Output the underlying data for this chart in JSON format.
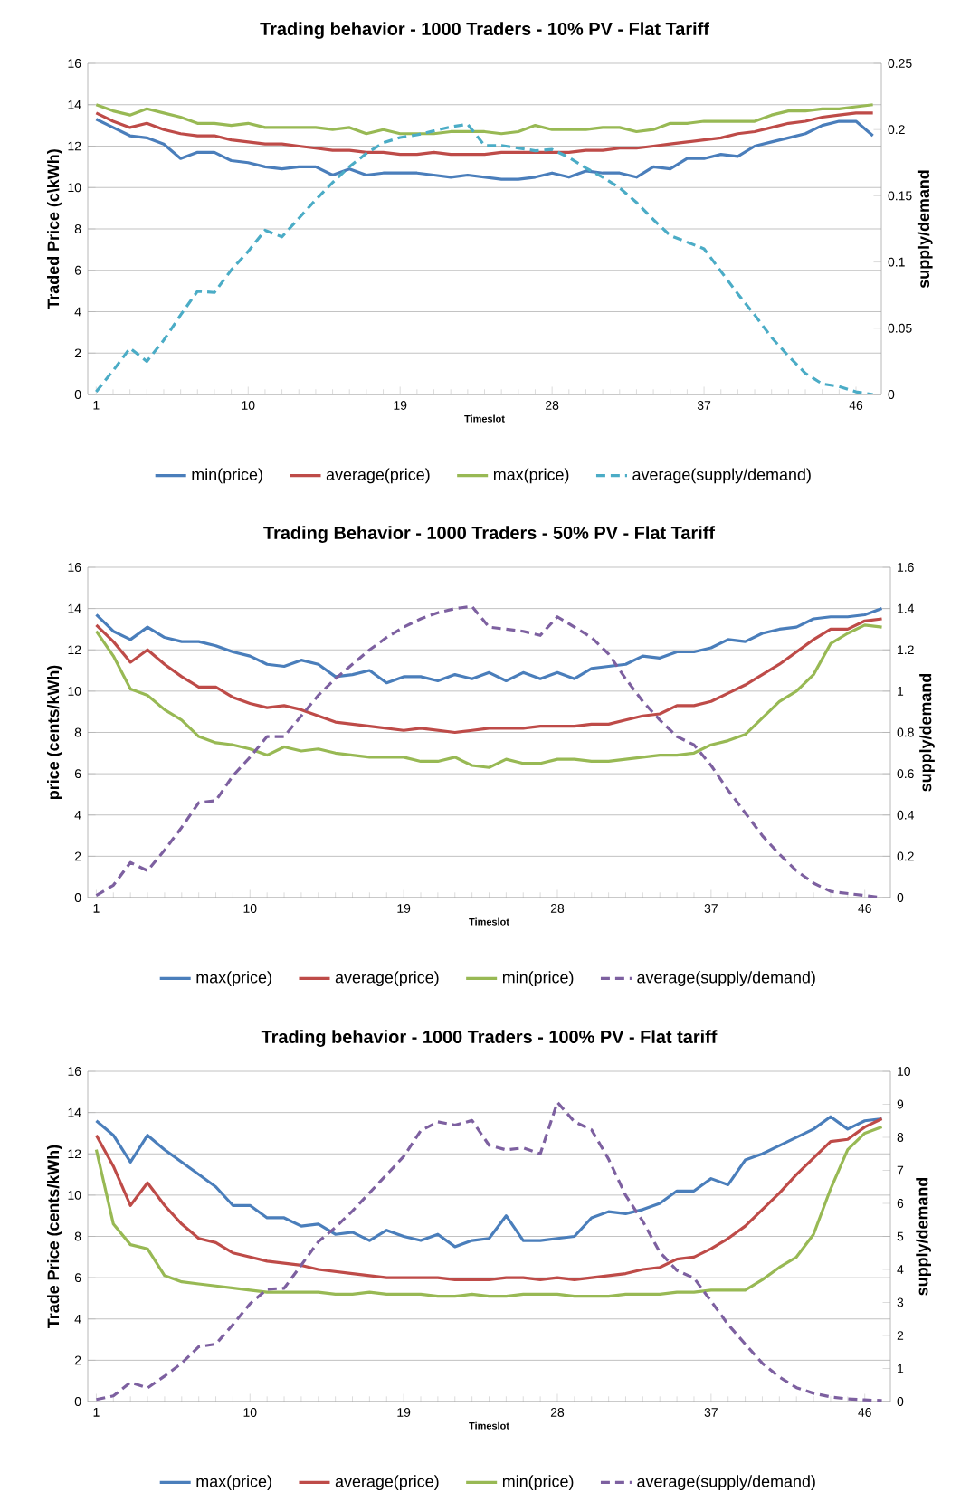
{
  "chart_data": [
    {
      "type": "line",
      "title": "Trading behavior - 1000 Traders - 10% PV - Flat Tariff",
      "xlabel": "Timeslot",
      "ylabel": "Traded Price (c\\kWh)",
      "y2label": "supply/demand",
      "x": [
        1,
        2,
        3,
        4,
        5,
        6,
        7,
        8,
        9,
        10,
        11,
        12,
        13,
        14,
        15,
        16,
        17,
        18,
        19,
        20,
        21,
        22,
        23,
        24,
        25,
        26,
        27,
        28,
        29,
        30,
        31,
        32,
        33,
        34,
        35,
        36,
        37,
        38,
        39,
        40,
        41,
        42,
        43,
        44,
        45,
        46,
        47
      ],
      "xlim": [
        0.5,
        47.5
      ],
      "xticks": [
        1,
        10,
        19,
        28,
        37,
        46
      ],
      "ylim": [
        0,
        16
      ],
      "yticks": [
        0,
        2,
        4,
        6,
        8,
        10,
        12,
        14,
        16
      ],
      "y2lim": [
        0,
        0.25
      ],
      "y2ticks": [
        0,
        0.05,
        0.1,
        0.15,
        0.2,
        0.25
      ],
      "grid": "y",
      "legend": "bottom",
      "marker": "none",
      "series": [
        {
          "name": "min(price)",
          "color": "#4a7ebb",
          "line_style": "solid",
          "values": [
            13.3,
            12.9,
            12.5,
            12.4,
            12.1,
            11.4,
            11.7,
            11.7,
            11.3,
            11.2,
            11.0,
            10.9,
            11.0,
            11.0,
            10.6,
            10.9,
            10.6,
            10.7,
            10.7,
            10.7,
            10.6,
            10.5,
            10.6,
            10.5,
            10.4,
            10.4,
            10.5,
            10.7,
            10.5,
            10.8,
            10.7,
            10.7,
            10.5,
            11.0,
            10.9,
            11.4,
            11.4,
            11.6,
            11.5,
            12.0,
            12.2,
            12.4,
            12.6,
            13.0,
            13.2,
            13.2,
            12.5
          ]
        },
        {
          "name": "average(price)",
          "color": "#be4b48",
          "line_style": "solid",
          "values": [
            13.6,
            13.2,
            12.9,
            13.1,
            12.8,
            12.6,
            12.5,
            12.5,
            12.3,
            12.2,
            12.1,
            12.1,
            12.0,
            11.9,
            11.8,
            11.8,
            11.7,
            11.7,
            11.6,
            11.6,
            11.7,
            11.6,
            11.6,
            11.6,
            11.7,
            11.7,
            11.7,
            11.7,
            11.7,
            11.8,
            11.8,
            11.9,
            11.9,
            12.0,
            12.1,
            12.2,
            12.3,
            12.4,
            12.6,
            12.7,
            12.9,
            13.1,
            13.2,
            13.4,
            13.5,
            13.6,
            13.6
          ]
        },
        {
          "name": "max(price)",
          "color": "#98b954",
          "line_style": "solid",
          "values": [
            14.0,
            13.7,
            13.5,
            13.8,
            13.6,
            13.4,
            13.1,
            13.1,
            13.0,
            13.1,
            12.9,
            12.9,
            12.9,
            12.9,
            12.8,
            12.9,
            12.6,
            12.8,
            12.6,
            12.6,
            12.6,
            12.7,
            12.7,
            12.7,
            12.6,
            12.7,
            13.0,
            12.8,
            12.8,
            12.8,
            12.9,
            12.9,
            12.7,
            12.8,
            13.1,
            13.1,
            13.2,
            13.2,
            13.2,
            13.2,
            13.5,
            13.7,
            13.7,
            13.8,
            13.8,
            13.9,
            14.0
          ]
        },
        {
          "name": "average(supply/demand)",
          "color": "#4bacc6",
          "line_style": "dashed",
          "axis": "y2",
          "values": [
            0.002,
            0.018,
            0.035,
            0.025,
            0.041,
            0.06,
            0.078,
            0.077,
            0.094,
            0.108,
            0.124,
            0.119,
            0.133,
            0.147,
            0.16,
            0.172,
            0.182,
            0.19,
            0.194,
            0.196,
            0.199,
            0.202,
            0.204,
            0.188,
            0.188,
            0.186,
            0.184,
            0.185,
            0.179,
            0.171,
            0.164,
            0.156,
            0.145,
            0.132,
            0.12,
            0.115,
            0.11,
            0.093,
            0.076,
            0.06,
            0.043,
            0.029,
            0.016,
            0.008,
            0.006,
            0.002,
            0
          ]
        }
      ]
    },
    {
      "type": "line",
      "title": "Trading Behavior - 1000 Traders - 50% PV - Flat Tariff",
      "xlabel": "Timeslot",
      "ylabel": "price (cents/kWh)",
      "y2label": "supply/demand",
      "x": [
        1,
        2,
        3,
        4,
        5,
        6,
        7,
        8,
        9,
        10,
        11,
        12,
        13,
        14,
        15,
        16,
        17,
        18,
        19,
        20,
        21,
        22,
        23,
        24,
        25,
        26,
        27,
        28,
        29,
        30,
        31,
        32,
        33,
        34,
        35,
        36,
        37,
        38,
        39,
        40,
        41,
        42,
        43,
        44,
        45,
        46,
        47
      ],
      "xlim": [
        0.5,
        47.5
      ],
      "xticks": [
        1,
        10,
        19,
        28,
        37,
        46
      ],
      "ylim": [
        0,
        16
      ],
      "yticks": [
        0,
        2,
        4,
        6,
        8,
        10,
        12,
        14,
        16
      ],
      "y2lim": [
        0,
        1.6
      ],
      "y2ticks": [
        0,
        0.2,
        0.4,
        0.6,
        0.8,
        1,
        1.2,
        1.4,
        1.6
      ],
      "grid": "y",
      "legend": "bottom",
      "marker": "none",
      "series": [
        {
          "name": "max(price)",
          "color": "#4a7ebb",
          "line_style": "solid",
          "values": [
            13.7,
            12.9,
            12.5,
            13.1,
            12.6,
            12.4,
            12.4,
            12.2,
            11.9,
            11.7,
            11.3,
            11.2,
            11.5,
            11.3,
            10.7,
            10.8,
            11.0,
            10.4,
            10.7,
            10.7,
            10.5,
            10.8,
            10.6,
            10.9,
            10.5,
            10.9,
            10.6,
            10.9,
            10.6,
            11.1,
            11.2,
            11.3,
            11.7,
            11.6,
            11.9,
            11.9,
            12.1,
            12.5,
            12.4,
            12.8,
            13.0,
            13.1,
            13.5,
            13.6,
            13.6,
            13.7,
            14.0
          ]
        },
        {
          "name": "average(price)",
          "color": "#be4b48",
          "line_style": "solid",
          "values": [
            13.2,
            12.4,
            11.4,
            12.0,
            11.3,
            10.7,
            10.2,
            10.2,
            9.7,
            9.4,
            9.2,
            9.3,
            9.1,
            8.8,
            8.5,
            8.4,
            8.3,
            8.2,
            8.1,
            8.2,
            8.1,
            8.0,
            8.1,
            8.2,
            8.2,
            8.2,
            8.3,
            8.3,
            8.3,
            8.4,
            8.4,
            8.6,
            8.8,
            8.9,
            9.3,
            9.3,
            9.5,
            9.9,
            10.3,
            10.8,
            11.3,
            11.9,
            12.5,
            13.0,
            13.0,
            13.4,
            13.5
          ]
        },
        {
          "name": "min(price)",
          "color": "#98b954",
          "line_style": "solid",
          "values": [
            12.9,
            11.7,
            10.1,
            9.8,
            9.1,
            8.6,
            7.8,
            7.5,
            7.4,
            7.2,
            6.9,
            7.3,
            7.1,
            7.2,
            7.0,
            6.9,
            6.8,
            6.8,
            6.8,
            6.6,
            6.6,
            6.8,
            6.4,
            6.3,
            6.7,
            6.5,
            6.5,
            6.7,
            6.7,
            6.6,
            6.6,
            6.7,
            6.8,
            6.9,
            6.9,
            7.0,
            7.4,
            7.6,
            7.9,
            8.7,
            9.5,
            10.0,
            10.8,
            12.3,
            12.8,
            13.2,
            13.1
          ]
        },
        {
          "name": "average(supply/demand)",
          "color": "#7d60a0",
          "line_style": "dashed",
          "axis": "y2",
          "values": [
            0.01,
            0.06,
            0.17,
            0.13,
            0.23,
            0.34,
            0.46,
            0.47,
            0.59,
            0.68,
            0.78,
            0.78,
            0.88,
            0.98,
            1.06,
            1.13,
            1.2,
            1.26,
            1.31,
            1.35,
            1.38,
            1.4,
            1.41,
            1.31,
            1.3,
            1.29,
            1.27,
            1.36,
            1.31,
            1.26,
            1.18,
            1.06,
            0.95,
            0.86,
            0.78,
            0.74,
            0.64,
            0.52,
            0.41,
            0.3,
            0.21,
            0.13,
            0.07,
            0.03,
            0.02,
            0.01,
            0
          ]
        }
      ]
    },
    {
      "type": "line",
      "title": "Trading behavior - 1000 Traders - 100% PV - Flat tariff",
      "xlabel": "Timeslot",
      "ylabel": "Trade Price (cents/kWh)",
      "y2label": "supply/demand",
      "x": [
        1,
        2,
        3,
        4,
        5,
        6,
        7,
        8,
        9,
        10,
        11,
        12,
        13,
        14,
        15,
        16,
        17,
        18,
        19,
        20,
        21,
        22,
        23,
        24,
        25,
        26,
        27,
        28,
        29,
        30,
        31,
        32,
        33,
        34,
        35,
        36,
        37,
        38,
        39,
        40,
        41,
        42,
        43,
        44,
        45,
        46,
        47
      ],
      "xlim": [
        0.5,
        47.5
      ],
      "xticks": [
        1,
        10,
        19,
        28,
        37,
        46
      ],
      "ylim": [
        0,
        16
      ],
      "yticks": [
        0,
        2,
        4,
        6,
        8,
        10,
        12,
        14,
        16
      ],
      "y2lim": [
        0,
        10
      ],
      "y2ticks": [
        0,
        1,
        2,
        3,
        4,
        5,
        6,
        7,
        8,
        9,
        10
      ],
      "grid": "y",
      "legend": "bottom",
      "marker": "none",
      "series": [
        {
          "name": "max(price)",
          "color": "#4a7ebb",
          "line_style": "solid",
          "values": [
            13.6,
            12.9,
            11.6,
            12.9,
            12.2,
            11.6,
            11.0,
            10.4,
            9.5,
            9.5,
            8.9,
            8.9,
            8.5,
            8.6,
            8.1,
            8.2,
            7.8,
            8.3,
            8.0,
            7.8,
            8.1,
            7.5,
            7.8,
            7.9,
            9.0,
            7.8,
            7.8,
            7.9,
            8.0,
            8.9,
            9.2,
            9.1,
            9.3,
            9.6,
            10.2,
            10.2,
            10.8,
            10.5,
            11.7,
            12.0,
            12.4,
            12.8,
            13.2,
            13.8,
            13.2,
            13.6,
            13.7
          ]
        },
        {
          "name": "average(price)",
          "color": "#be4b48",
          "line_style": "solid",
          "values": [
            12.9,
            11.4,
            9.5,
            10.6,
            9.5,
            8.6,
            7.9,
            7.7,
            7.2,
            7.0,
            6.8,
            6.7,
            6.6,
            6.4,
            6.3,
            6.2,
            6.1,
            6.0,
            6.0,
            6.0,
            6.0,
            5.9,
            5.9,
            5.9,
            6.0,
            6.0,
            5.9,
            6.0,
            5.9,
            6.0,
            6.1,
            6.2,
            6.4,
            6.5,
            6.9,
            7.0,
            7.4,
            7.9,
            8.5,
            9.3,
            10.1,
            11.0,
            11.8,
            12.6,
            12.7,
            13.3,
            13.7
          ]
        },
        {
          "name": "min(price)",
          "color": "#98b954",
          "line_style": "solid",
          "values": [
            12.2,
            8.6,
            7.6,
            7.4,
            6.1,
            5.8,
            5.7,
            5.6,
            5.5,
            5.4,
            5.3,
            5.3,
            5.3,
            5.3,
            5.2,
            5.2,
            5.3,
            5.2,
            5.2,
            5.2,
            5.1,
            5.1,
            5.2,
            5.1,
            5.1,
            5.2,
            5.2,
            5.2,
            5.1,
            5.1,
            5.1,
            5.2,
            5.2,
            5.2,
            5.3,
            5.3,
            5.4,
            5.4,
            5.4,
            5.9,
            6.5,
            7.0,
            8.1,
            10.3,
            12.2,
            13.0,
            13.3
          ]
        },
        {
          "name": "average(supply/demand)",
          "color": "#7d60a0",
          "line_style": "dashed",
          "axis": "y2",
          "values": [
            0.06,
            0.17,
            0.58,
            0.41,
            0.77,
            1.16,
            1.66,
            1.74,
            2.33,
            2.96,
            3.4,
            3.43,
            4.13,
            4.84,
            5.27,
            5.77,
            6.32,
            6.87,
            7.42,
            8.2,
            8.47,
            8.37,
            8.51,
            7.76,
            7.62,
            7.68,
            7.5,
            9.06,
            8.47,
            8.23,
            7.34,
            6.24,
            5.46,
            4.52,
            3.97,
            3.74,
            3.04,
            2.33,
            1.74,
            1.16,
            0.74,
            0.42,
            0.25,
            0.14,
            0.08,
            0.05,
            0.03
          ]
        }
      ]
    }
  ]
}
